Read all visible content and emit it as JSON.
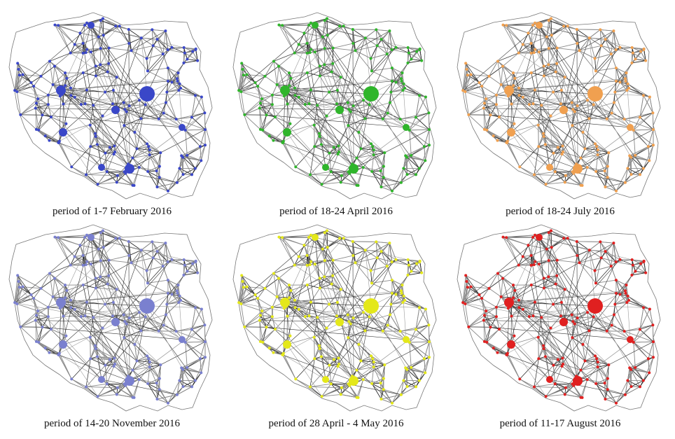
{
  "panels": [
    {
      "caption": "period of 1-7 February 2016",
      "node_color": "#3a47c8"
    },
    {
      "caption": "period of 18-24 April 2016",
      "node_color": "#2fb52b"
    },
    {
      "caption": "period of 18-24 July 2016",
      "node_color": "#f0a050"
    },
    {
      "caption": "period of 14-20 November 2016",
      "node_color": "#7a80cf"
    },
    {
      "caption": "period of 28 April - 4 May 2016",
      "node_color": "#e4e81a"
    },
    {
      "caption": "period of 11-17 August 2016",
      "node_color": "#e02020"
    }
  ]
}
